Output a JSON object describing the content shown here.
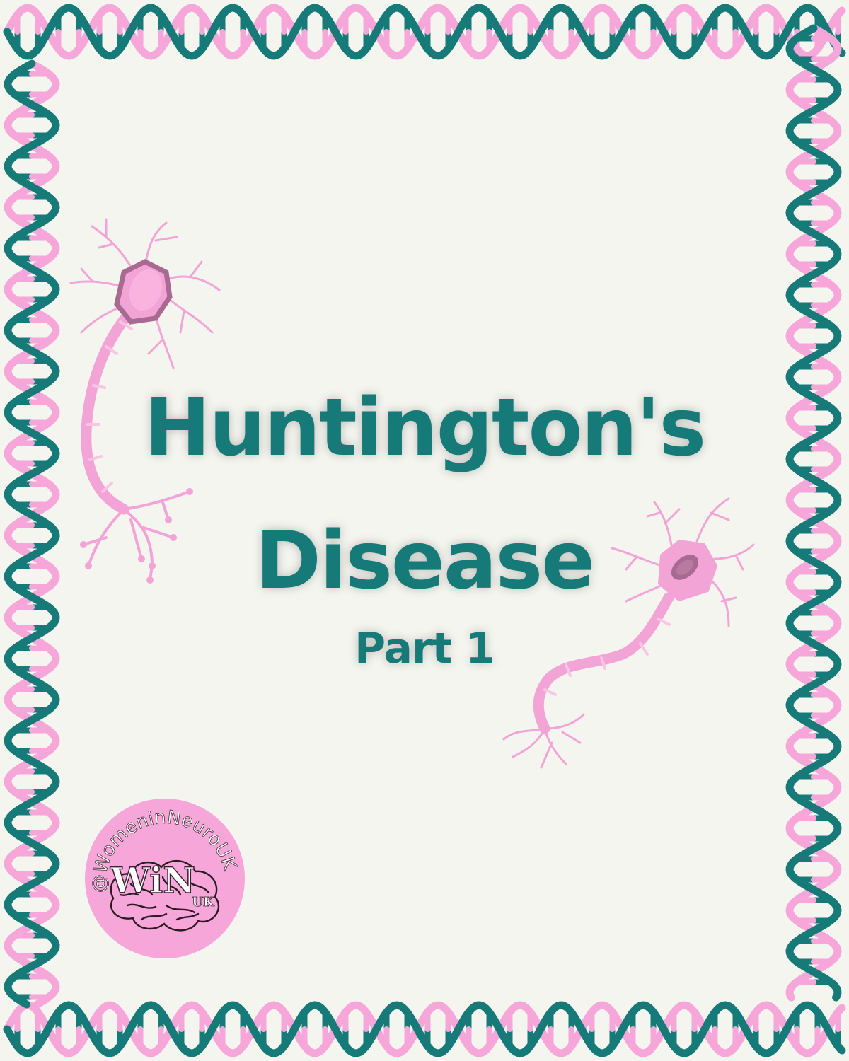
{
  "title": {
    "line1": "Huntington's",
    "line2": "Disease",
    "subtitle": "Part 1"
  },
  "logo": {
    "handle": "@WomeninNeuroUK",
    "mark": "WiN",
    "sub": "UK"
  },
  "colors": {
    "background": "#f5f5f0",
    "teal": "#167a78",
    "pink": "#f7a6d9",
    "neuron_pink": "#f3a4d6",
    "nucleus": "#a86a90",
    "logo_circle": "#f7a6d9"
  },
  "icons": [
    "dna-helix-border-icon",
    "neuron-icon",
    "brain-icon"
  ]
}
